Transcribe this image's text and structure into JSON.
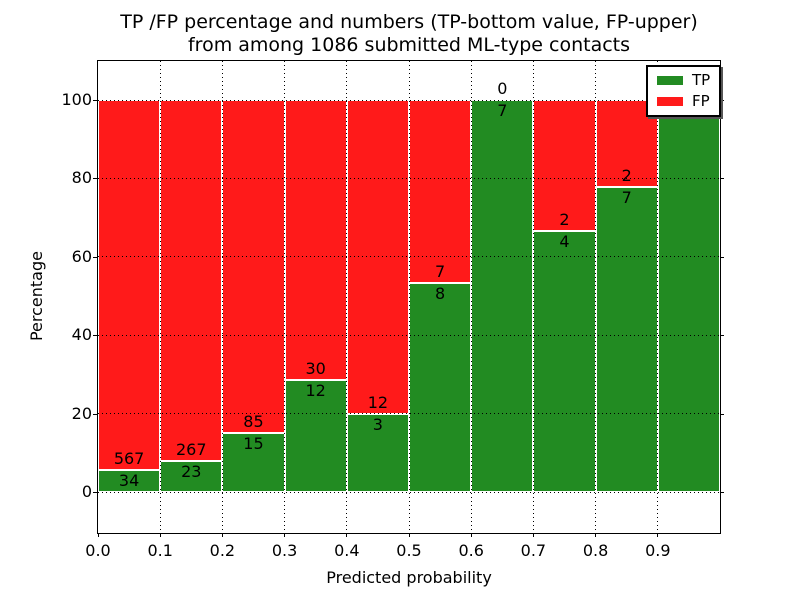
{
  "title": {
    "line1": "TP /FP percentage and numbers (TP-bottom value, FP-upper)",
    "line2": "from among 1086 submitted ML-type contacts"
  },
  "chart_data": {
    "type": "bar",
    "stacked": true,
    "normalized": "percent",
    "title": "TP /FP percentage and numbers (TP-bottom value, FP-upper)\nfrom among 1086 submitted ML-type contacts",
    "xlabel": "Predicted probability",
    "ylabel": "Percentage",
    "x_tick_labels": [
      "0.0",
      "0.1",
      "0.2",
      "0.3",
      "0.4",
      "0.5",
      "0.6",
      "0.7",
      "0.8",
      "0.9"
    ],
    "y_ticks": [
      0,
      20,
      40,
      60,
      80,
      100
    ],
    "xlim": [
      0.0,
      1.0
    ],
    "ylim": [
      -10,
      110
    ],
    "grid": "dotted-black",
    "total_contacts": 1086,
    "legend": {
      "position": "upper-right",
      "entries": [
        {
          "label": "TP",
          "color": "#228B22"
        },
        {
          "label": "FP",
          "color": "#FF1A1A"
        }
      ]
    },
    "bins": [
      {
        "range": "0.0-0.1",
        "tp": 34,
        "fp": 567
      },
      {
        "range": "0.1-0.2",
        "tp": 23,
        "fp": 267
      },
      {
        "range": "0.2-0.3",
        "tp": 15,
        "fp": 85
      },
      {
        "range": "0.3-0.4",
        "tp": 12,
        "fp": 30
      },
      {
        "range": "0.4-0.5",
        "tp": 3,
        "fp": 12
      },
      {
        "range": "0.5-0.6",
        "tp": 8,
        "fp": 7
      },
      {
        "range": "0.6-0.7",
        "tp": 7,
        "fp": 0
      },
      {
        "range": "0.7-0.8",
        "tp": 4,
        "fp": 2
      },
      {
        "range": "0.8-0.9",
        "tp": 7,
        "fp": 2
      },
      {
        "range": "0.9-1.0",
        "tp": 1,
        "fp": 0
      }
    ]
  },
  "colors": {
    "tp": "#228B22",
    "fp": "#FF1A1A",
    "grid": "#000000",
    "bar_edge": "#FFFFFF",
    "background": "#FFFFFF"
  }
}
